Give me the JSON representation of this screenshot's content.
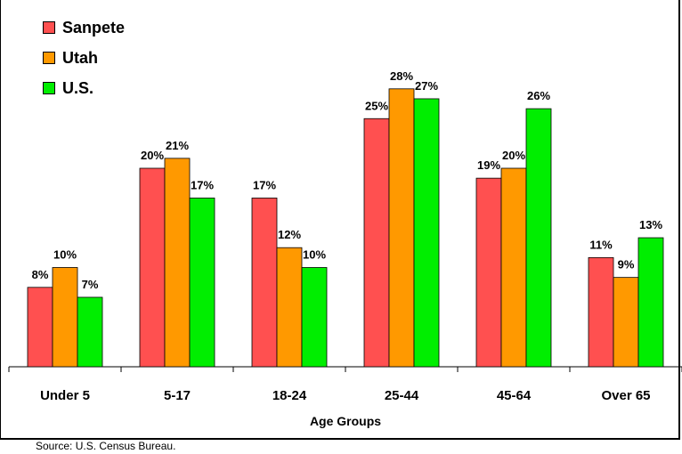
{
  "chart_data": {
    "type": "bar",
    "categories": [
      "Under 5",
      "5-17",
      "18-24",
      "25-44",
      "45-64",
      "Over 65"
    ],
    "series": [
      {
        "name": "Sanpete",
        "color": "#ff5050",
        "values": [
          8,
          20,
          17,
          25,
          19,
          11
        ],
        "labels": [
          "8%",
          "20%",
          "17%",
          "25%",
          "19%",
          "11%"
        ]
      },
      {
        "name": "Utah",
        "color": "#ff9900",
        "values": [
          10,
          21,
          12,
          28,
          20,
          9
        ],
        "labels": [
          "10%",
          "21%",
          "12%",
          "28%",
          "20%",
          "9%"
        ]
      },
      {
        "name": "U.S.",
        "color": "#00ee00",
        "values": [
          7,
          17,
          10,
          27,
          26,
          13
        ],
        "labels": [
          "7%",
          "17%",
          "10%",
          "27%",
          "26%",
          "13%"
        ]
      }
    ],
    "xlabel": "Age Groups",
    "ylabel": "",
    "ylim": [
      0,
      28.7
    ],
    "grid": false,
    "legend_position": "top-left"
  },
  "source_note": "Source: U.S. Census Bureau."
}
